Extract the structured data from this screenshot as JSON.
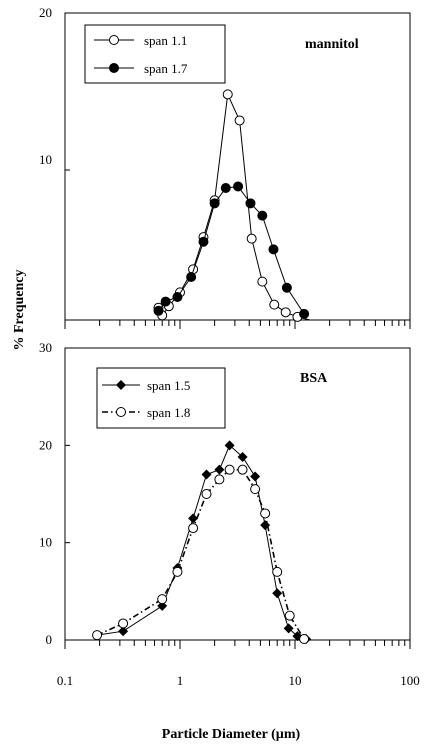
{
  "x_label": "Particle Diameter (µm)",
  "y_label": "% Frequency",
  "chart_data": [
    {
      "type": "line",
      "name": "mannitol",
      "xscale": "log",
      "xlim": [
        0.1,
        100
      ],
      "ylim": [
        0,
        20
      ],
      "yticks": [
        "20",
        "10"
      ],
      "xticklabels_shown": false,
      "grid": false,
      "legend_position": "top-left",
      "series": [
        {
          "name": "span 1.1",
          "marker": "open-circle",
          "line": "solid",
          "x": [
            0.65,
            0.7,
            0.8,
            1.0,
            1.3,
            1.6,
            2.0,
            2.6,
            3.3,
            4.2,
            5.2,
            6.6,
            8.3,
            10.5,
            13.5
          ],
          "y": [
            0.8,
            0.3,
            0.9,
            1.8,
            3.3,
            5.4,
            7.8,
            14.7,
            13.0,
            5.3,
            2.5,
            1.0,
            0.5,
            0.2,
            0.0
          ]
        },
        {
          "name": "span 1.7",
          "marker": "filled-circle",
          "line": "solid",
          "x": [
            0.65,
            0.75,
            0.95,
            1.25,
            1.6,
            2.0,
            2.5,
            3.2,
            4.1,
            5.2,
            6.5,
            8.5,
            12.0
          ],
          "y": [
            0.6,
            1.2,
            1.5,
            2.8,
            5.1,
            7.6,
            8.6,
            8.7,
            7.6,
            6.8,
            4.6,
            2.1,
            0.4
          ]
        }
      ]
    },
    {
      "type": "line",
      "name": "BSA",
      "xscale": "log",
      "xlim": [
        0.1,
        100
      ],
      "ylim": [
        0,
        30
      ],
      "yticks": [
        "30",
        "20",
        "10",
        "0"
      ],
      "xticks": [
        "0.1",
        "1",
        "10",
        "100"
      ],
      "grid": false,
      "legend_position": "top-left",
      "series": [
        {
          "name": "span 1.5",
          "marker": "filled-diamond",
          "line": "solid",
          "x": [
            0.19,
            0.32,
            0.7,
            0.95,
            1.3,
            1.7,
            2.2,
            2.7,
            3.5,
            4.5,
            5.5,
            7.0,
            8.8,
            10.5,
            12.5
          ],
          "y": [
            0.5,
            0.9,
            3.5,
            7.4,
            12.5,
            17.0,
            17.5,
            20.0,
            18.8,
            16.8,
            11.8,
            4.8,
            1.2,
            0.4,
            0.1
          ]
        },
        {
          "name": "span 1.8",
          "marker": "open-circle",
          "line": "dash-dot",
          "x": [
            0.19,
            0.32,
            0.7,
            0.95,
            1.3,
            1.7,
            2.2,
            2.7,
            3.5,
            4.5,
            5.5,
            7.0,
            9.0,
            12.0
          ],
          "y": [
            0.5,
            1.7,
            4.2,
            7.0,
            11.5,
            15.0,
            16.5,
            17.5,
            17.5,
            15.5,
            13.0,
            7.0,
            2.5,
            0.1
          ]
        }
      ]
    }
  ]
}
